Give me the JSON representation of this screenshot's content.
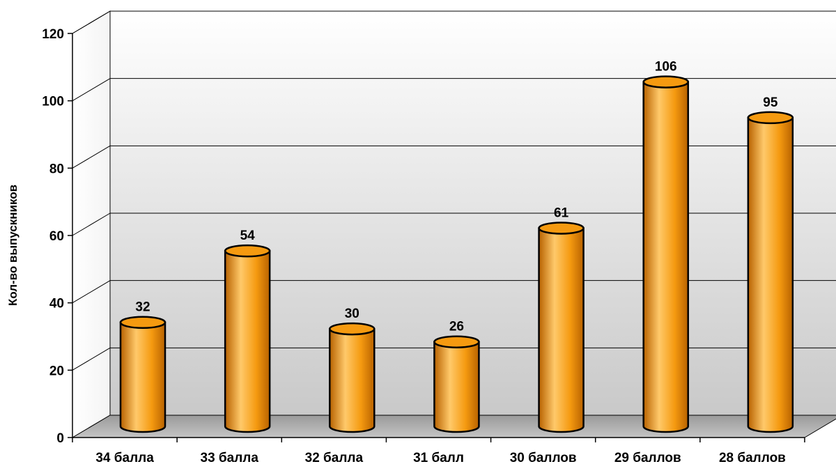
{
  "chart_data": {
    "type": "bar",
    "bar_shape": "cylinder",
    "title": "",
    "xlabel": "",
    "ylabel": "Кол-во выпускников",
    "categories": [
      "34 балла",
      "33 балла",
      "32 балла",
      "31 балл",
      "30 баллов",
      "29 баллов",
      "28 баллов"
    ],
    "values": [
      32,
      54,
      30,
      26,
      61,
      106,
      95
    ],
    "data_labels": [
      "32",
      "54",
      "30",
      "26",
      "61",
      "106",
      "95"
    ],
    "y_ticks": [
      "0",
      "20",
      "40",
      "60",
      "80",
      "100",
      "120"
    ],
    "ylim": [
      0,
      120
    ],
    "grid": true,
    "legend": "none",
    "colors": {
      "bar": "#F59A10",
      "bar_light": "#FFC96A",
      "bar_dark": "#B86200",
      "outline": "#000000"
    }
  }
}
